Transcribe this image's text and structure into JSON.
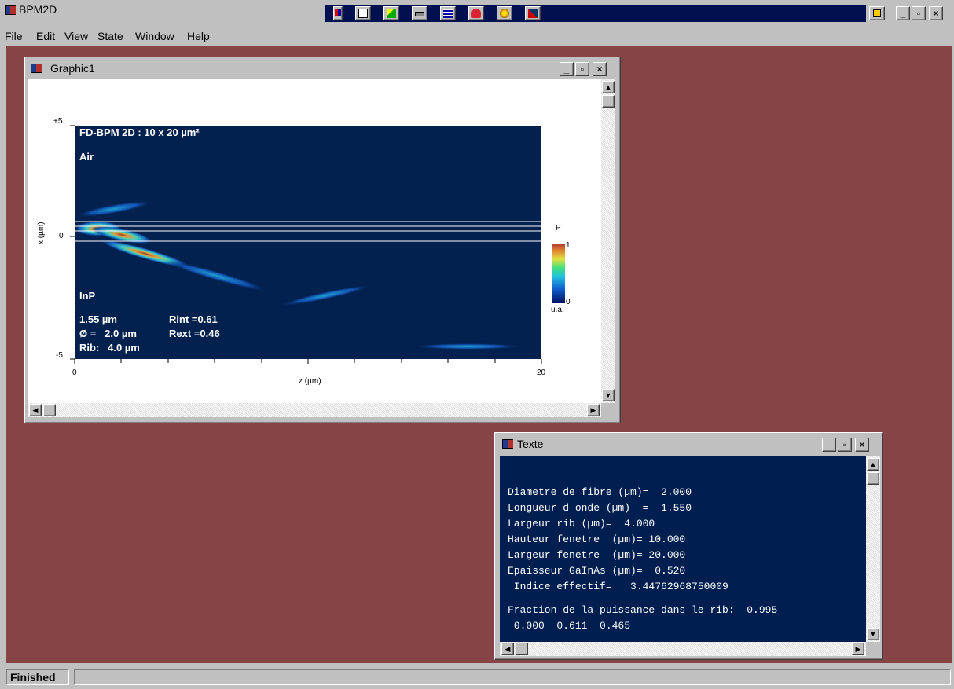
{
  "app": {
    "title": "BPM2D",
    "menu": [
      "File",
      "Edit",
      "View",
      "State",
      "Window",
      "Help"
    ],
    "toolbar_icons": [
      "cross-icon",
      "camera-icon",
      "paint-icon",
      "printer-icon",
      "notepad-icon",
      "heart-icon",
      "palette-icon",
      "music-icon"
    ],
    "window_controls": {
      "minimize": "_",
      "maximize": "▫",
      "close": "×"
    }
  },
  "graphic_window": {
    "title": "Graphic1",
    "plot": {
      "header": "FD-BPM 2D :  10 x 20 µm²",
      "region_top": "Air",
      "region_bottom": "InP",
      "wavelength": "1.55 µm",
      "rint": "Rint =0.61",
      "diameter": "Ø =   2.0 µm",
      "rext": "Rext =0.46",
      "rib": "Rib:   4.0 µm",
      "y_ticks": [
        "+5",
        "0",
        "-5"
      ],
      "x_ticks": [
        "0",
        "20"
      ],
      "ylabel": "x (µm)",
      "xlabel": "z (µm)",
      "colorbar_title": "P",
      "colorbar_max": "1",
      "colorbar_min": "0",
      "colorbar_unit": "u.a.",
      "background_color": "#03214e"
    }
  },
  "text_window": {
    "title": "Texte",
    "lines": [
      "",
      "Diametre de fibre (µm)=  2.000",
      "Longueur d onde (µm)  =  1.550",
      "Largeur rib (µm)=  4.000",
      "Hauteur fenetre  (µm)= 10.000",
      "Largeur fenetre  (µm)= 20.000",
      "Epaisseur GaInAs (µm)=  0.520",
      " Indice effectif=   3.44762968750009",
      "",
      "Fraction de la puissance dans le rib:  0.995",
      " 0.000  0.611  0.465"
    ]
  },
  "status": {
    "text": "Finished"
  },
  "colors": {
    "desktop": "#874446",
    "toolbar_strip": "#001050",
    "text_bg": "#001e50"
  }
}
